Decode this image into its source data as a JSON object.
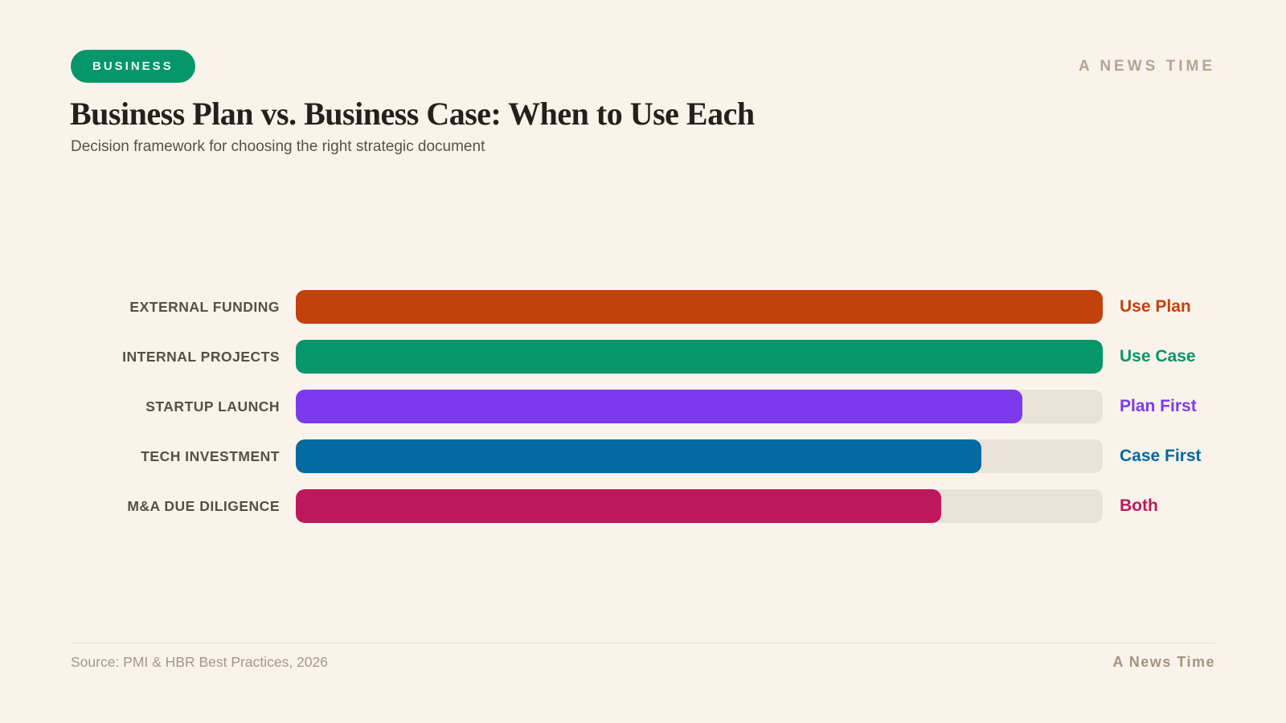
{
  "page": {
    "background_color": "#faf3eb"
  },
  "header": {
    "badge_label": "BUSINESS",
    "badge_color": "#059669",
    "brand": "A NEWS TIME"
  },
  "title": "Business Plan vs. Business Case: When to Use Each",
  "subtitle": "Decision framework for choosing the right strategic document",
  "chart_data": {
    "type": "bar",
    "orientation": "horizontal",
    "title": "Business Plan vs. Business Case: When to Use Each",
    "categories": [
      "EXTERNAL FUNDING",
      "INTERNAL PROJECTS",
      "STARTUP LAUNCH",
      "TECH INVESTMENT",
      "M&A DUE DILIGENCE"
    ],
    "values": [
      100,
      100,
      90,
      85,
      80
    ],
    "value_labels": [
      "Use Plan",
      "Use Case",
      "Plan First",
      "Case First",
      "Both"
    ],
    "bar_colors": [
      "#c2410c",
      "#059669",
      "#7c3aed",
      "#0369a1",
      "#be185d"
    ],
    "track_color": "#e9e2d7",
    "xlim": [
      0,
      100
    ],
    "grid": false,
    "legend": "none",
    "value_label_position": "right-of-track"
  },
  "footer": {
    "source": "Source: PMI & HBR Best Practices, 2026",
    "brand": "A News Time"
  }
}
